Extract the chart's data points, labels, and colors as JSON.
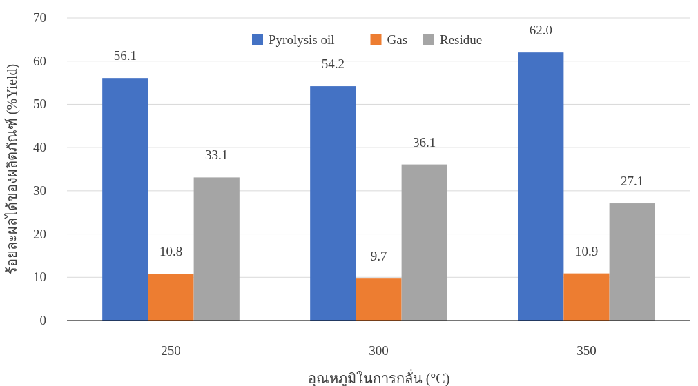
{
  "chart_data": {
    "type": "bar",
    "xlabel": "อุณหภูมิในการกลั่น (°C)",
    "ylabel": "ร้อยละผลได้ของผลิตภัณฑ์ (%Yield)",
    "categories": [
      "250",
      "300",
      "350"
    ],
    "series": [
      {
        "name": "Pyrolysis oil",
        "color": "#4472c4",
        "values": [
          56.1,
          54.2,
          62.0
        ],
        "value_labels": [
          "56.1",
          "54.2",
          "62.0"
        ]
      },
      {
        "name": "Gas",
        "color": "#ed7d31",
        "values": [
          10.8,
          9.7,
          10.9
        ],
        "value_labels": [
          "10.8",
          "9.7",
          "10.9"
        ]
      },
      {
        "name": "Residue",
        "color": "#a5a5a5",
        "values": [
          33.1,
          36.1,
          27.1
        ],
        "value_labels": [
          "33.1",
          "36.1",
          "27.1"
        ]
      }
    ],
    "ylim": [
      0,
      70
    ],
    "yticks": [
      0,
      10,
      20,
      30,
      40,
      50,
      60,
      70
    ],
    "grid": "y",
    "legend": "top"
  }
}
